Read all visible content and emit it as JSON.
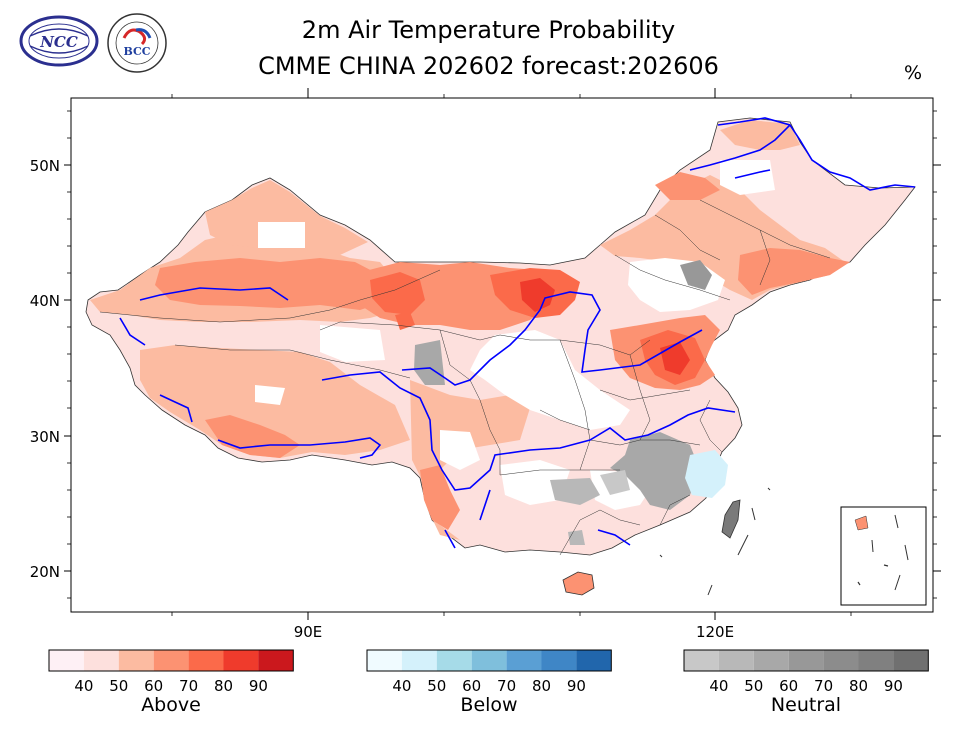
{
  "header": {
    "title_line1": "2m Air Temperature Probability",
    "title_line2": "CMME CHINA 202602 forecast:202606",
    "unit": "%"
  },
  "logos": {
    "left": "ncc-logo",
    "right_text": "BCC"
  },
  "map": {
    "lat_ticks": [
      "50N",
      "40N",
      "30N",
      "20N"
    ],
    "lon_ticks": [
      "90E",
      "120E"
    ],
    "colors": {
      "river": "#0000ff",
      "border": "#000000"
    }
  },
  "colorbars": [
    {
      "label": "Above",
      "ticks": [
        "40",
        "50",
        "60",
        "70",
        "80",
        "90"
      ],
      "colors": [
        "#fef0f5",
        "#fde0dd",
        "#fcbba1",
        "#fc9272",
        "#fb6a4a",
        "#ef3b2c",
        "#cb181d"
      ]
    },
    {
      "label": "Below",
      "ticks": [
        "40",
        "50",
        "60",
        "70",
        "80",
        "90"
      ],
      "colors": [
        "#f0fbff",
        "#d4f1fb",
        "#a6dbe8",
        "#7fbfdc",
        "#5a9fd4",
        "#3f86c6",
        "#2166ac"
      ]
    },
    {
      "label": "Neutral",
      "ticks": [
        "40",
        "50",
        "60",
        "70",
        "80",
        "90"
      ],
      "colors": [
        "#c8c8c8",
        "#b8b8b8",
        "#a8a8a8",
        "#989898",
        "#8c8c8c",
        "#808080",
        "#707070"
      ]
    }
  ]
}
